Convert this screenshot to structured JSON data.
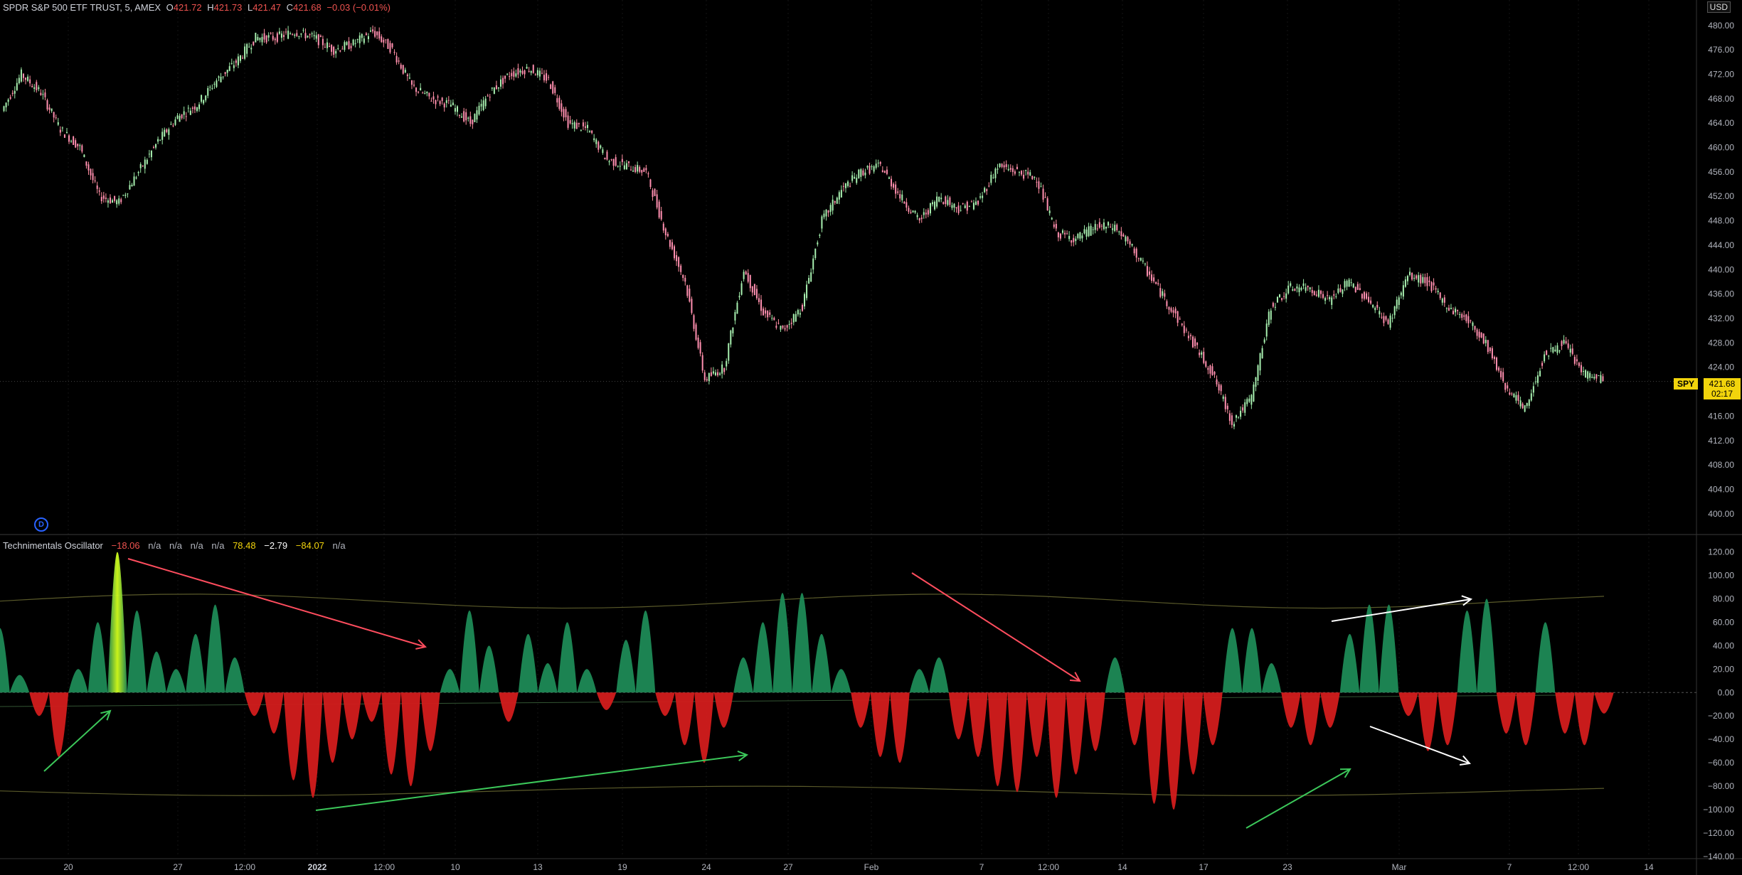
{
  "header": {
    "symbol_title": "SPDR S&P 500 ETF TRUST, 5, AMEX",
    "open_label": "O",
    "open": "421.72",
    "high_label": "H",
    "high": "421.73",
    "low_label": "L",
    "low": "421.47",
    "close_label": "C",
    "close": "421.68",
    "change": "−0.03 (−0.01%)"
  },
  "currency": "USD",
  "last_price_badge": {
    "symbol": "SPY",
    "price": "421.68",
    "countdown": "02:17"
  },
  "oscillator_header": {
    "name": "Technimentals Oscillator",
    "v1": "−18.06",
    "v2": "n/a",
    "v3": "n/a",
    "v4": "n/a",
    "v5": "n/a",
    "v6": "78.48",
    "v7": "−2.79",
    "v8": "−84.07",
    "v9": "n/a"
  },
  "data_window_icon": "D",
  "colors": {
    "up": "#26a69a",
    "down": "#ef5350",
    "osc_pos": "#1e8a56",
    "osc_neg": "#d31c1c",
    "highlight": "#d4ff1a",
    "bands": "#5a5a2a",
    "grid": "#1a1a1a",
    "price_badge": "#f2d40c"
  },
  "chart_data": [
    {
      "type": "line",
      "title": "SPDR S&P 500 ETF TRUST, 5, AMEX",
      "ylabel": "USD",
      "ylim": [
        398,
        483
      ],
      "y_ticks": [
        "480.00",
        "476.00",
        "472.00",
        "468.00",
        "464.00",
        "460.00",
        "456.00",
        "452.00",
        "448.00",
        "444.00",
        "440.00",
        "436.00",
        "432.00",
        "428.00",
        "424.00",
        "420.00",
        "416.00",
        "412.00",
        "408.00",
        "404.00",
        "400.00"
      ],
      "x_ticks": [
        "20",
        "27",
        "12:00",
        "2022",
        "12:00",
        "10",
        "13",
        "19",
        "24",
        "27",
        "Feb",
        "7",
        "12:00",
        "14",
        "17",
        "23",
        "Mar",
        "7",
        "12:00",
        "14"
      ],
      "series": [
        {
          "name": "SPY",
          "values": [
            466,
            472,
            469,
            463,
            460,
            452,
            451,
            456,
            461,
            465,
            467,
            471,
            474,
            478,
            478,
            479,
            478,
            476,
            477,
            479,
            476,
            470,
            468,
            467,
            464,
            469,
            472,
            473,
            471,
            464,
            463,
            458,
            457,
            456,
            446,
            438,
            422,
            424,
            440,
            433,
            430,
            434,
            448,
            453,
            456,
            457,
            452,
            448,
            452,
            450,
            451,
            457,
            456,
            455,
            446,
            445,
            447,
            447,
            443,
            438,
            433,
            428,
            423,
            415,
            419,
            434,
            437,
            437,
            435,
            438,
            435,
            431,
            439,
            438,
            434,
            432,
            428,
            421,
            417,
            426,
            428,
            423,
            422
          ]
        }
      ]
    },
    {
      "type": "area",
      "title": "Technimentals Oscillator",
      "ylim": [
        -140,
        130
      ],
      "y_ticks": [
        "120.00",
        "100.00",
        "80.00",
        "60.00",
        "40.00",
        "20.00",
        "0.00",
        "−20.00",
        "−40.00",
        "−60.00",
        "−80.00",
        "−100.00",
        "−120.00",
        "−140.00"
      ],
      "series": [
        {
          "name": "Technimentals Oscillator",
          "values": [
            55,
            15,
            -20,
            -55,
            20,
            60,
            120,
            70,
            35,
            20,
            50,
            75,
            30,
            -20,
            -35,
            -75,
            -90,
            -60,
            -40,
            -25,
            -70,
            -80,
            -50,
            20,
            70,
            40,
            -25,
            50,
            25,
            60,
            20,
            -15,
            45,
            70,
            -20,
            -45,
            -60,
            -30,
            30,
            60,
            85,
            85,
            50,
            20,
            -30,
            -55,
            -60,
            20,
            30,
            -40,
            -55,
            -80,
            -85,
            -55,
            -90,
            -70,
            -50,
            30,
            -45,
            -95,
            -100,
            -70,
            -45,
            55,
            55,
            25,
            -30,
            -45,
            -30,
            50,
            75,
            75,
            -20,
            -50,
            -45,
            70,
            80,
            -35,
            -45,
            60,
            -35,
            -45,
            -18
          ]
        }
      ]
    }
  ]
}
